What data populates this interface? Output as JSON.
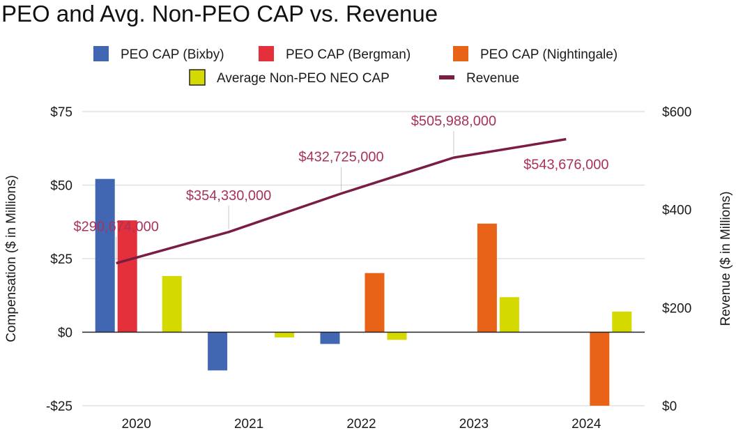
{
  "chart_data": {
    "type": "bar+line",
    "title": "PEO and Avg. Non-PEO CAP vs. Revenue",
    "categories": [
      "2020",
      "2021",
      "2022",
      "2023",
      "2024"
    ],
    "y_left": {
      "label": "Compensation ($ in Millions)",
      "ylim": [
        -25,
        75
      ],
      "ticks": [
        -25,
        0,
        25,
        50,
        75
      ],
      "tick_labels": [
        "-$25",
        "$0",
        "$25",
        "$50",
        "$75"
      ]
    },
    "y_right": {
      "label": "Revenue ($ in Millions)",
      "ylim": [
        0,
        600
      ],
      "ticks": [
        0,
        200,
        400,
        600
      ],
      "tick_labels": [
        "$0",
        "$200",
        "$400",
        "$600"
      ]
    },
    "series": [
      {
        "name": "PEO CAP (Bixby)",
        "type": "bar",
        "axis": "left",
        "color": "#4267b2",
        "values": [
          52.1,
          -13.0,
          -4.0,
          null,
          null
        ]
      },
      {
        "name": "PEO CAP (Bergman)",
        "type": "bar",
        "axis": "left",
        "color": "#e3303a",
        "values": [
          38.0,
          null,
          null,
          null,
          null
        ]
      },
      {
        "name": "PEO CAP (Nightingale)",
        "type": "bar",
        "axis": "left",
        "color": "#e86317",
        "values": [
          null,
          null,
          20.1,
          36.9,
          -25.0
        ]
      },
      {
        "name": "Average Non-PEO NEO CAP",
        "type": "bar",
        "axis": "left",
        "color": "#d4d900",
        "values": [
          19.1,
          -1.8,
          -2.6,
          11.9,
          7.0
        ]
      },
      {
        "name": "Revenue",
        "type": "line",
        "axis": "right",
        "color": "#7a1d45",
        "values": [
          290.674,
          354.33,
          432.725,
          505.988,
          543.676
        ],
        "labels": [
          "$290,674,000",
          "$354,330,000",
          "$432,725,000",
          "$505,988,000",
          "$543,676,000"
        ]
      }
    ],
    "grid": true,
    "legend_position": "top"
  }
}
